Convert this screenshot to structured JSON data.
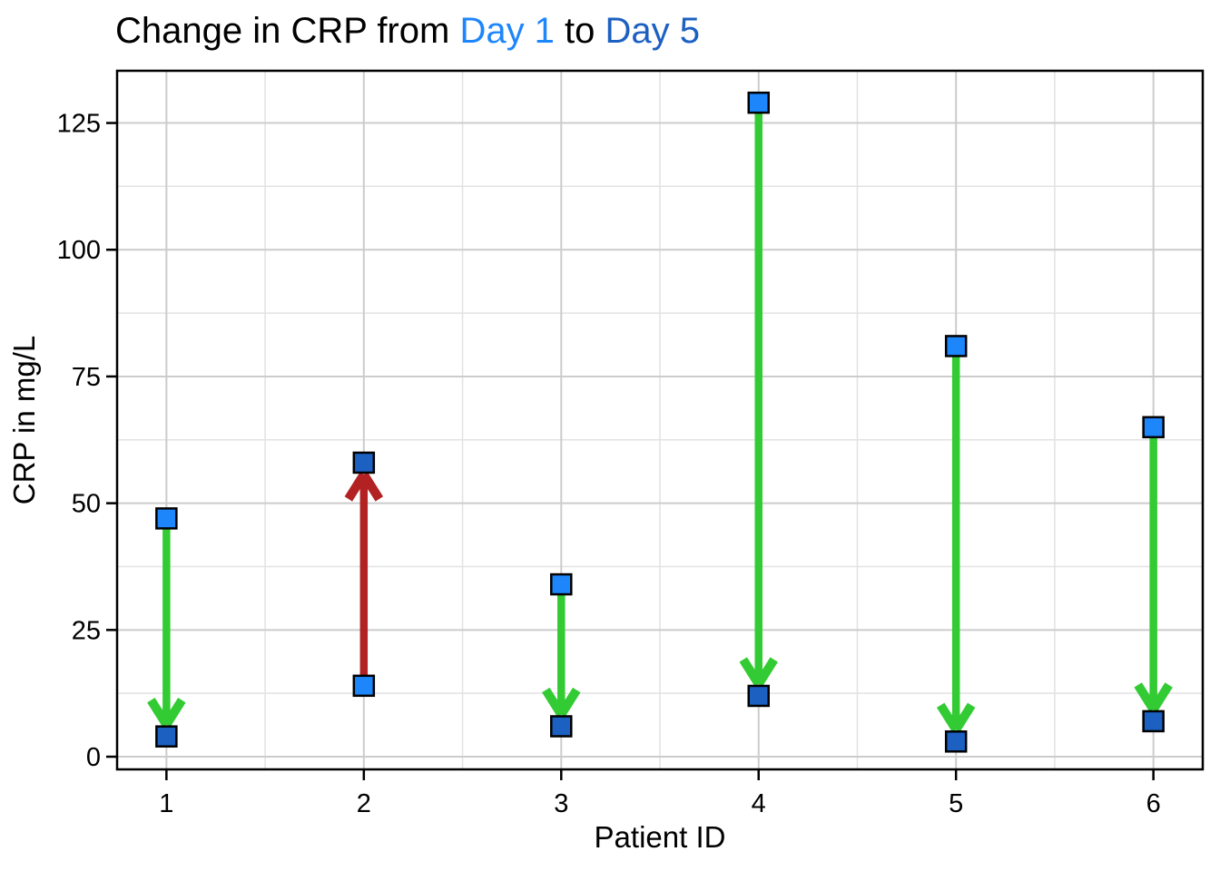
{
  "title": {
    "part1": "Change in CRP from ",
    "day1": "Day 1",
    "part2": " to ",
    "day5": "Day 5"
  },
  "colors": {
    "day1": "#1E86FB",
    "day5": "#1C60C2",
    "decrease": "#33CB33",
    "increase": "#B22222",
    "grid_major": "#CCCCCC",
    "grid_minor": "#E2E2E2",
    "axis": "#000000",
    "marker_edge": "#000000"
  },
  "chart_data": {
    "type": "scatter",
    "subtype": "paired-values-with-change-arrows (dumbbell/arrow plot)",
    "title": "Change in CRP from Day 1 to Day 5",
    "xlabel": "Patient ID",
    "ylabel": "CRP in mg/L",
    "categories": [
      1,
      2,
      3,
      4,
      5,
      6
    ],
    "series": [
      {
        "name": "Day 1",
        "marker": "square",
        "values": [
          47,
          14,
          34,
          129,
          81,
          65
        ]
      },
      {
        "name": "Day 5",
        "marker": "square",
        "values": [
          4,
          58,
          6,
          12,
          3,
          7
        ]
      }
    ],
    "arrows": [
      {
        "patient": 1,
        "from": 47,
        "to": 4,
        "direction": "decrease"
      },
      {
        "patient": 2,
        "from": 14,
        "to": 58,
        "direction": "increase"
      },
      {
        "patient": 3,
        "from": 34,
        "to": 6,
        "direction": "decrease"
      },
      {
        "patient": 4,
        "from": 129,
        "to": 12,
        "direction": "decrease"
      },
      {
        "patient": 5,
        "from": 81,
        "to": 3,
        "direction": "decrease"
      },
      {
        "patient": 6,
        "from": 65,
        "to": 7,
        "direction": "decrease"
      }
    ],
    "x_ticks": [
      1,
      2,
      3,
      4,
      5,
      6
    ],
    "y_ticks": [
      0,
      25,
      50,
      75,
      100,
      125
    ],
    "xlim": [
      0.75,
      6.25
    ],
    "ylim": [
      -2.5,
      135.3
    ],
    "grid": "major+minor",
    "legend": "none"
  }
}
